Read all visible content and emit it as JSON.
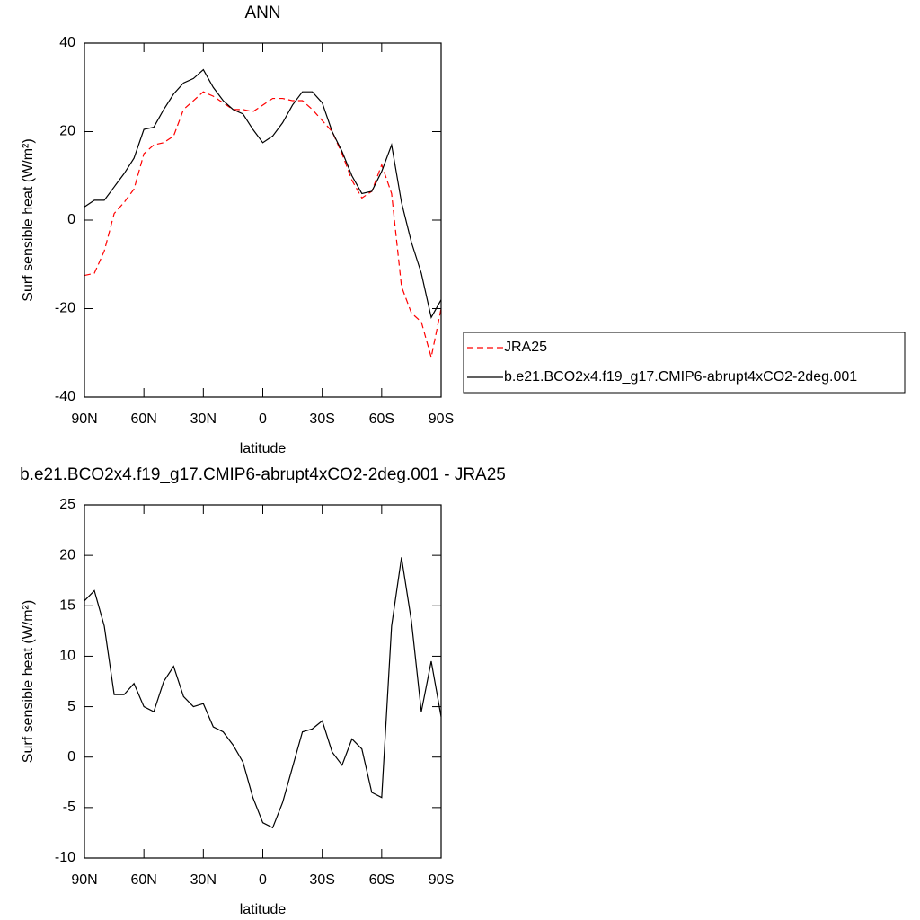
{
  "chart_data": [
    {
      "type": "line",
      "title": "ANN",
      "x_label": "latitude",
      "y_label": "Surf sensible heat (W/m²)",
      "x": [
        90,
        85,
        80,
        75,
        70,
        65,
        60,
        55,
        50,
        45,
        40,
        35,
        30,
        25,
        20,
        15,
        10,
        5,
        0,
        -5,
        -10,
        -15,
        -20,
        -25,
        -30,
        -35,
        -40,
        -45,
        -50,
        -55,
        -60,
        -65,
        -70,
        -75,
        -80,
        -85,
        -90
      ],
      "series": [
        {
          "name": "JRA25",
          "color": "#ff0000",
          "dashed": true,
          "values": [
            -12.5,
            -12,
            -7,
            1.5,
            4,
            7,
            15,
            17,
            17.5,
            19,
            25,
            27,
            29,
            28,
            26.5,
            25,
            25,
            24.5,
            26,
            27.5,
            27.5,
            27,
            27,
            25,
            22.5,
            20,
            15,
            9,
            5,
            6.5,
            12.5,
            6,
            -15,
            -21,
            -23,
            -31,
            -20
          ]
        },
        {
          "name": "b.e21.BCO2x4.f19_g17.CMIP6-abrupt4xCO2-2deg.001",
          "color": "#000000",
          "dashed": false,
          "values": [
            3,
            4.5,
            4.5,
            7.5,
            10.5,
            14,
            20.5,
            21,
            25,
            28.5,
            31,
            32,
            34,
            30,
            27,
            25,
            24,
            20.5,
            17.5,
            19,
            22,
            26,
            29,
            29,
            26.5,
            20,
            15.5,
            10,
            6,
            6.5,
            11,
            17,
            4,
            -5,
            -12,
            -22,
            -18
          ]
        }
      ],
      "xlim": [
        90,
        -90
      ],
      "xticks": [
        {
          "value": 90,
          "label": "90N"
        },
        {
          "value": 60,
          "label": "60N"
        },
        {
          "value": 30,
          "label": "30N"
        },
        0,
        {
          "value": -30,
          "label": "30S"
        },
        {
          "value": -60,
          "label": "60S"
        },
        {
          "value": -90,
          "label": "90S"
        }
      ],
      "ylim": [
        -40,
        40
      ],
      "yticks": [
        -40,
        -20,
        0,
        20,
        40
      ],
      "legend": "right"
    },
    {
      "type": "line",
      "title": "b.e21.BCO2x4.f19_g17.CMIP6-abrupt4xCO2-2deg.001 - JRA25",
      "x_label": "latitude",
      "y_label": "Surf sensible heat (W/m²)",
      "x": [
        90,
        85,
        80,
        75,
        70,
        65,
        60,
        55,
        50,
        45,
        40,
        35,
        30,
        25,
        20,
        15,
        10,
        5,
        0,
        -5,
        -10,
        -15,
        -20,
        -25,
        -30,
        -35,
        -40,
        -45,
        -50,
        -55,
        -60,
        -65,
        -70,
        -75,
        -80,
        -85,
        -90
      ],
      "series": [
        {
          "color": "#000000",
          "dashed": false,
          "values": [
            15.5,
            16.5,
            13,
            6.2,
            6.2,
            7.3,
            5,
            4.5,
            7.5,
            9,
            6,
            5,
            5.3,
            3,
            2.5,
            1.2,
            -0.5,
            -4,
            -6.5,
            -7,
            -4.5,
            -1,
            2.5,
            2.8,
            3.6,
            0.5,
            -0.8,
            1.8,
            0.8,
            -3.5,
            -4,
            13,
            19.8,
            13.5,
            4.5,
            9.5,
            4
          ]
        }
      ],
      "xlim": [
        90,
        -90
      ],
      "xticks": [
        {
          "value": 90,
          "label": "90N"
        },
        {
          "value": 60,
          "label": "60N"
        },
        {
          "value": 30,
          "label": "30N"
        },
        0,
        {
          "value": -30,
          "label": "30S"
        },
        {
          "value": -60,
          "label": "60S"
        },
        {
          "value": -90,
          "label": "90S"
        }
      ],
      "ylim": [
        -10,
        25
      ],
      "yticks": [
        -10,
        -5,
        0,
        5,
        10,
        15,
        20,
        25
      ]
    }
  ]
}
